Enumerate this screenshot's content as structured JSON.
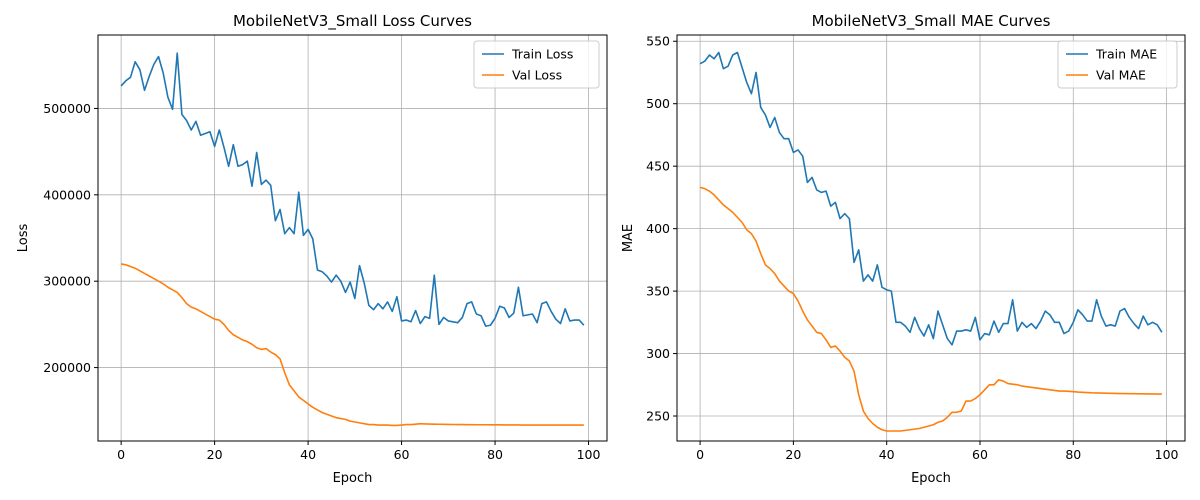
{
  "chart_data": [
    {
      "type": "line",
      "title": "MobileNetV3_Small Loss Curves",
      "xlabel": "Epoch",
      "ylabel": "Loss",
      "xlim": [
        -4.95,
        103.95
      ],
      "ylim": [
        115000,
        585000
      ],
      "xticks": [
        0,
        20,
        40,
        60,
        80,
        100
      ],
      "yticks": [
        200000,
        300000,
        400000,
        500000
      ],
      "grid": true,
      "legend": "top-right",
      "series": [
        {
          "name": "Train Loss",
          "color": "#1f77b4",
          "values": [
            526000,
            532000,
            536000,
            554000,
            545000,
            521000,
            537000,
            551000,
            560000,
            541000,
            513000,
            499000,
            564000,
            493000,
            486000,
            475000,
            485000,
            469000,
            471000,
            473000,
            456000,
            475000,
            455000,
            433000,
            458000,
            433000,
            435000,
            439000,
            410000,
            449000,
            412000,
            417000,
            411000,
            370000,
            383000,
            355000,
            362000,
            355000,
            403000,
            353000,
            360000,
            349000,
            313000,
            311000,
            306000,
            299000,
            307000,
            300000,
            287000,
            299000,
            280000,
            318000,
            298000,
            272000,
            267000,
            274000,
            268000,
            276000,
            265000,
            282000,
            254000,
            255000,
            253000,
            266000,
            251000,
            259000,
            257000,
            307000,
            250000,
            258000,
            254000,
            253000,
            252000,
            258000,
            274000,
            276000,
            262000,
            260000,
            248000,
            249000,
            257000,
            271000,
            269000,
            258000,
            263000,
            293000,
            260000,
            261000,
            262000,
            252000,
            274000,
            276000,
            265000,
            256000,
            251000,
            268000,
            254000,
            255000,
            255000,
            249000
          ]
        },
        {
          "name": "Val Loss",
          "color": "#ff7f0e",
          "values": [
            320000,
            319000,
            317000,
            315000,
            312000,
            309000,
            306000,
            303000,
            300000,
            297000,
            293000,
            290000,
            287000,
            281000,
            274000,
            270000,
            268000,
            265000,
            262000,
            259000,
            256000,
            255000,
            250000,
            243000,
            238000,
            235000,
            232000,
            230000,
            227000,
            223000,
            221000,
            222000,
            218000,
            215000,
            210000,
            194000,
            180000,
            173000,
            166000,
            162000,
            158000,
            154000,
            151000,
            148000,
            146000,
            144000,
            142000,
            141000,
            140000,
            138000,
            137000,
            136000,
            135000,
            134000,
            134000,
            133500,
            133500,
            133500,
            133000,
            133000,
            133500,
            134000,
            134000,
            134500,
            135000,
            134800,
            134600,
            134500,
            134400,
            134300,
            134200,
            134100,
            134000,
            134000,
            133900,
            133900,
            133800,
            133800,
            133800,
            133700,
            133700,
            133700,
            133600,
            133600,
            133600,
            133600,
            133500,
            133500,
            133500,
            133500,
            133500,
            133500,
            133500,
            133500,
            133500,
            133500,
            133500,
            133500,
            133500,
            133500
          ]
        }
      ]
    },
    {
      "type": "line",
      "title": "MobileNetV3_Small MAE Curves",
      "xlabel": "Epoch",
      "ylabel": "MAE",
      "xlim": [
        -4.95,
        103.95
      ],
      "ylim": [
        230,
        555
      ],
      "xticks": [
        0,
        20,
        40,
        60,
        80,
        100
      ],
      "yticks": [
        250,
        300,
        350,
        400,
        450,
        500,
        550
      ],
      "grid": true,
      "legend": "top-right",
      "series": [
        {
          "name": "Train MAE",
          "color": "#1f77b4",
          "values": [
            532,
            534,
            539,
            536,
            541,
            528,
            530,
            539,
            541,
            529,
            517,
            508,
            525,
            497,
            491,
            481,
            489,
            477,
            472,
            472,
            461,
            463,
            458,
            437,
            441,
            431,
            429,
            430,
            418,
            421,
            408,
            412,
            408,
            373,
            383,
            358,
            363,
            358,
            371,
            353,
            351,
            350,
            325,
            325,
            322,
            317,
            329,
            320,
            314,
            323,
            312,
            334,
            323,
            312,
            307,
            318,
            318,
            319,
            318,
            329,
            311,
            316,
            315,
            326,
            317,
            324,
            324,
            343,
            318,
            325,
            321,
            324,
            320,
            326,
            334,
            331,
            325,
            325,
            316,
            318,
            325,
            335,
            331,
            326,
            326,
            343,
            330,
            322,
            323,
            322,
            334,
            336,
            329,
            324,
            320,
            330,
            323,
            325,
            323,
            317
          ]
        },
        {
          "name": "Val MAE",
          "color": "#ff7f0e",
          "values": [
            433,
            432,
            430,
            427,
            423,
            419,
            416,
            413,
            409,
            405,
            399,
            396,
            390,
            380,
            371,
            368,
            364,
            358,
            354,
            350,
            348,
            342,
            334,
            327,
            322,
            317,
            316,
            311,
            305,
            306,
            302,
            297,
            294,
            286,
            267,
            254,
            248,
            244,
            241,
            239,
            238,
            238,
            238,
            238,
            238.5,
            239,
            239.5,
            240,
            241,
            242,
            243,
            245,
            246,
            249,
            253,
            253,
            254,
            262,
            262,
            264,
            267,
            271,
            275,
            275,
            279,
            278,
            276,
            275.5,
            275,
            274,
            273.5,
            273,
            272.5,
            272,
            271.5,
            271,
            270.5,
            270,
            270,
            269.8,
            269.5,
            269.2,
            269,
            268.8,
            268.6,
            268.5,
            268.4,
            268.3,
            268.2,
            268.1,
            268,
            268,
            267.9,
            267.9,
            267.8,
            267.8,
            267.7,
            267.7,
            267.6,
            267.6
          ]
        }
      ]
    }
  ]
}
